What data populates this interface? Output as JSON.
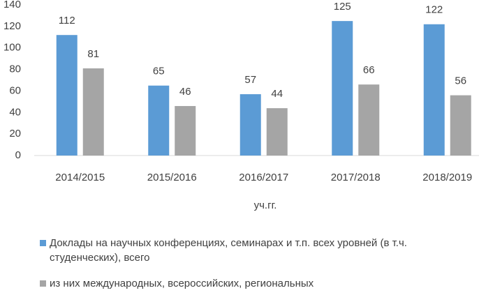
{
  "chart_data": {
    "type": "bar",
    "x_label": "уч.гг.",
    "categories": [
      "2014/2015",
      "2015/2016",
      "2016/2017",
      "2017/2018",
      "2018/2019"
    ],
    "series": [
      {
        "name": "Доклады на научных конференциях, семинарах и т.п. всех уровней (в т.ч. студенческих), всего",
        "color": "#5b9bd5",
        "values": [
          112,
          65,
          57,
          125,
          122
        ]
      },
      {
        "name": "из них международных, всероссийских, региональных",
        "color": "#a5a5a5",
        "values": [
          81,
          46,
          44,
          66,
          56
        ]
      }
    ],
    "ylim": [
      0,
      140
    ],
    "yticks": [
      0,
      20,
      40,
      60,
      80,
      100,
      120,
      140
    ],
    "grid": false
  }
}
